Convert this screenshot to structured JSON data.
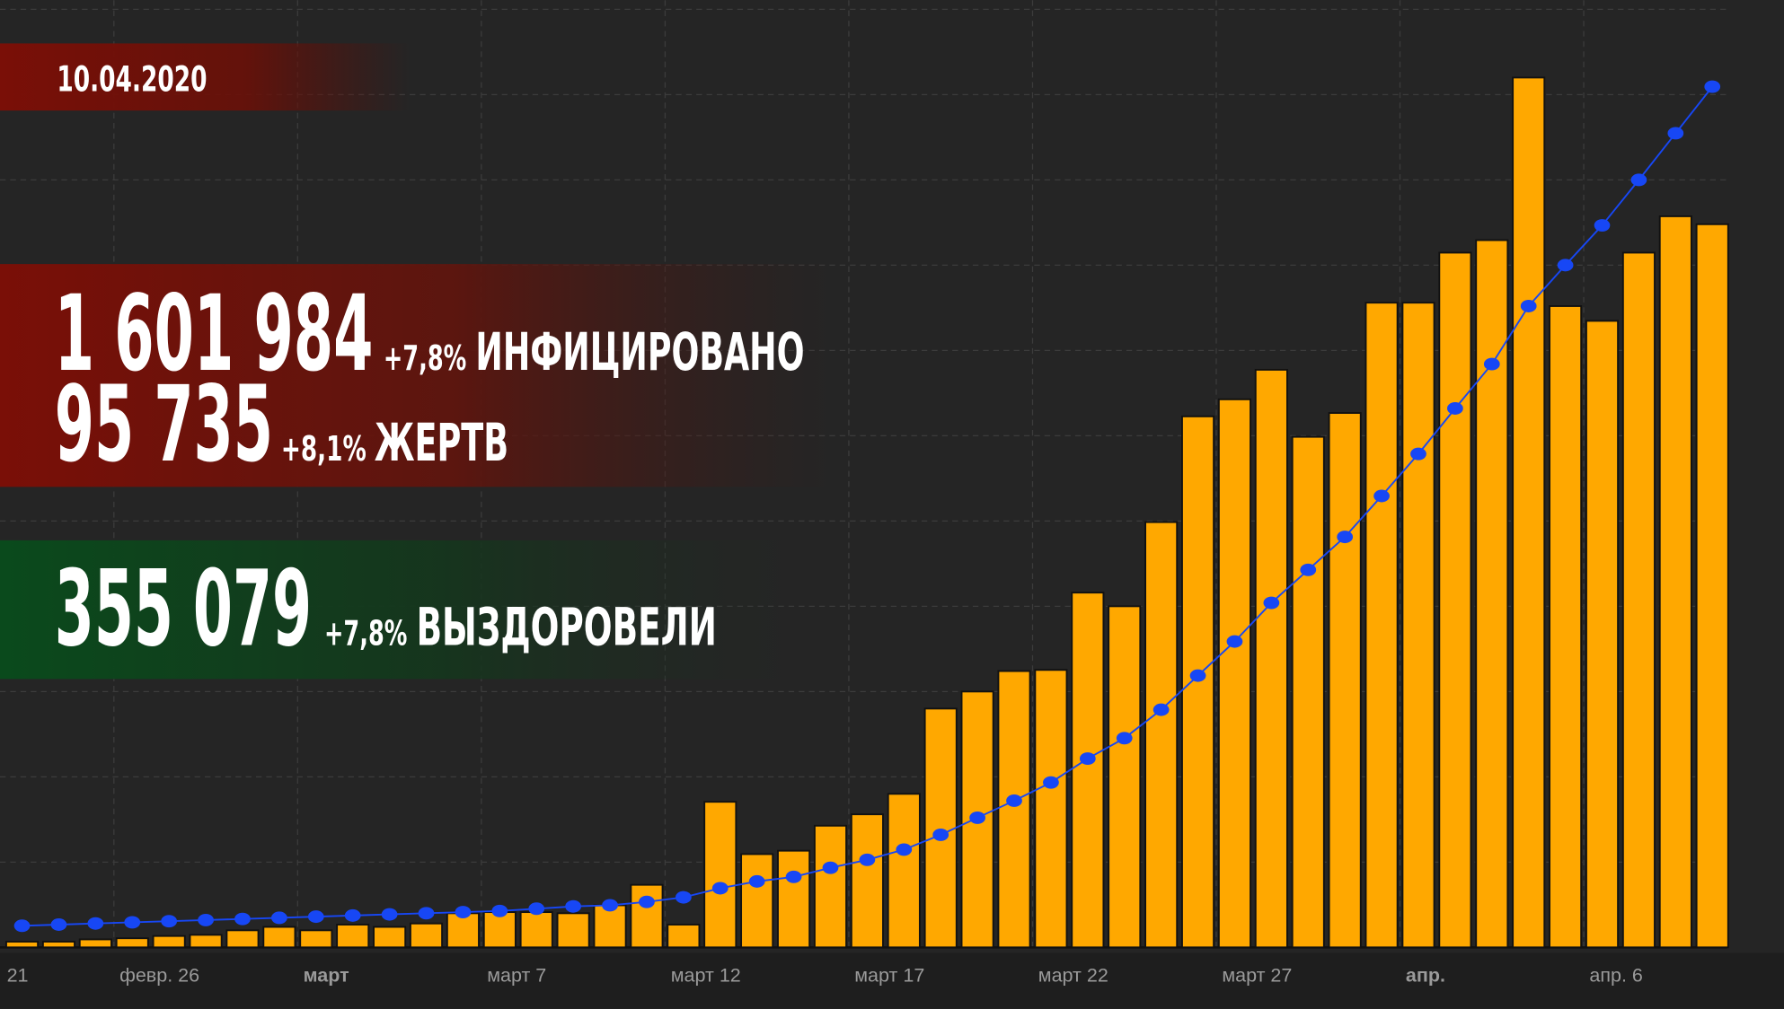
{
  "chart_data": {
    "type": "bar",
    "x": [
      -2.5,
      -1.5,
      -0.5,
      0.5,
      1.5,
      2.5,
      3.5,
      4.5,
      5.5,
      6.5,
      7.5,
      8.5,
      9.5,
      10.5,
      11.5,
      12.5,
      13.5,
      14.5,
      15.5,
      16.5,
      17.5,
      18.5,
      19.5,
      20.5,
      21.5,
      22.5,
      23.5,
      24.5,
      25.5,
      26.5,
      27.5,
      28.5,
      29.5,
      30.5,
      31.5,
      32.5,
      33.5,
      34.5,
      35.5,
      36.5,
      37.5,
      38.5,
      39.5,
      40.5,
      41.5,
      42.5,
      43.5
    ],
    "series": [
      {
        "type": "bar",
        "color": "#ffa800",
        "values": [
          5,
          5,
          7,
          8,
          10,
          11,
          15,
          18,
          15,
          20,
          18,
          21,
          30,
          31,
          31,
          30,
          37,
          55,
          20,
          128,
          82,
          85,
          107,
          117,
          135,
          210,
          225,
          243,
          244,
          312,
          300,
          374,
          467,
          482,
          508,
          449,
          470,
          567,
          567,
          611,
          622,
          765,
          564,
          551,
          611,
          643,
          636
        ]
      },
      {
        "type": "line",
        "color": "#1747f5",
        "values": [
          19,
          20,
          21,
          22,
          23,
          24,
          25,
          26,
          27,
          28,
          29,
          30,
          31,
          32,
          34,
          36,
          37,
          40,
          44,
          52,
          58,
          62,
          70,
          77,
          86,
          99,
          114,
          129,
          145,
          166,
          184,
          209,
          239,
          269,
          303,
          332,
          361,
          397,
          434,
          474,
          513,
          564,
          600,
          635,
          675,
          716,
          757
        ]
      }
    ],
    "xlim": [
      -3.1,
      45.45
    ],
    "ylim": [
      0,
      833
    ],
    "xticks": [
      {
        "value": -5,
        "label": "21"
      },
      {
        "value": 0,
        "label": "февр. 26"
      },
      {
        "value": 5,
        "label": "март"
      },
      {
        "value": 10,
        "label": "март 7"
      },
      {
        "value": 15,
        "label": "март 12"
      },
      {
        "value": 20,
        "label": "март 17"
      },
      {
        "value": 25,
        "label": "март 22"
      },
      {
        "value": 30,
        "label": "март 27"
      },
      {
        "value": 35,
        "label": "апр."
      },
      {
        "value": 40,
        "label": "апр. 6"
      }
    ],
    "grid": true
  },
  "overlay": {
    "date": "10.04.2020",
    "infected": {
      "number": "1 601 984",
      "change": "+7,8%",
      "label": "ИНФИЦИРОВАНО"
    },
    "deaths": {
      "number": "95 735",
      "change": "+8,1%",
      "label": "ЖЕРТВ"
    },
    "recovered": {
      "number": "355 079",
      "change": "+7,8%",
      "label": "ВЫЗДОРОВЕЛИ"
    }
  }
}
